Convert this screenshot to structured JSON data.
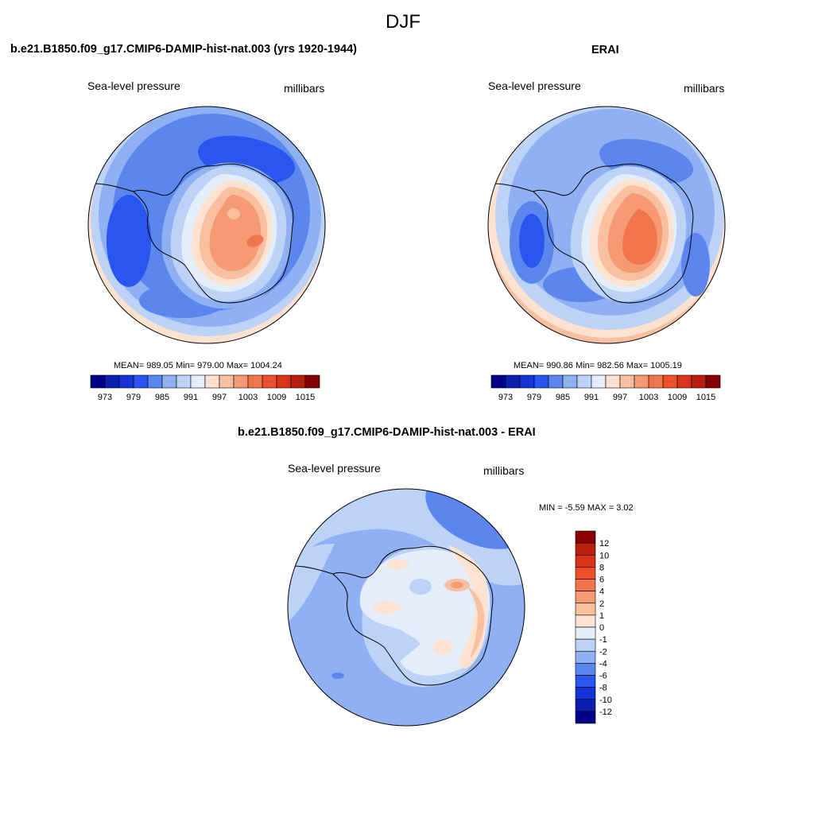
{
  "figure": {
    "title": "DJF"
  },
  "panels": {
    "model": {
      "title": "b.e21.B1850.f09_g17.CMIP6-DAMIP-hist-nat.003 (yrs 1920-1944)",
      "left_label": "Sea-level pressure",
      "right_label": "millibars",
      "stats": "MEAN= 989.05  Min= 979.00  Max= 1004.24"
    },
    "obs": {
      "title": "ERAI",
      "left_label": "Sea-level pressure",
      "right_label": "millibars",
      "stats": "MEAN= 990.86  Min= 982.56  Max= 1005.19"
    },
    "diff": {
      "title": "b.e21.B1850.f09_g17.CMIP6-DAMIP-hist-nat.003 - ERAI",
      "left_label": "Sea-level pressure",
      "right_label": "millibars",
      "stats": "MIN =  -5.59 MAX =   3.02"
    }
  },
  "colorbars": {
    "abs": {
      "orientation": "horizontal",
      "levels": [
        "973",
        "979",
        "985",
        "991",
        "997",
        "1003",
        "1009",
        "1015"
      ],
      "colors": [
        "#00008b",
        "#0a1fb0",
        "#1633d9",
        "#2a56f0",
        "#5a86ee",
        "#8fb0f2",
        "#bcd2f6",
        "#e3eefa",
        "#fde2cf",
        "#f8bfa1",
        "#f59a73",
        "#f2764d",
        "#ee4f2b",
        "#d9331a",
        "#b81f0e",
        "#8b0000"
      ]
    },
    "diff": {
      "orientation": "vertical",
      "levels": [
        "12",
        "10",
        "8",
        "6",
        "4",
        "2",
        "1",
        "0",
        "-1",
        "-2",
        "-4",
        "-6",
        "-8",
        "-10",
        "-12"
      ],
      "colors": [
        "#8b0000",
        "#b81f0e",
        "#d9331a",
        "#ee4f2b",
        "#f2764d",
        "#f59a73",
        "#f8bfa1",
        "#fde2cf",
        "#e3eefa",
        "#bcd2f6",
        "#8fb0f2",
        "#5a86ee",
        "#2a56f0",
        "#1633d9",
        "#0a1fb0",
        "#00008b"
      ]
    }
  }
}
